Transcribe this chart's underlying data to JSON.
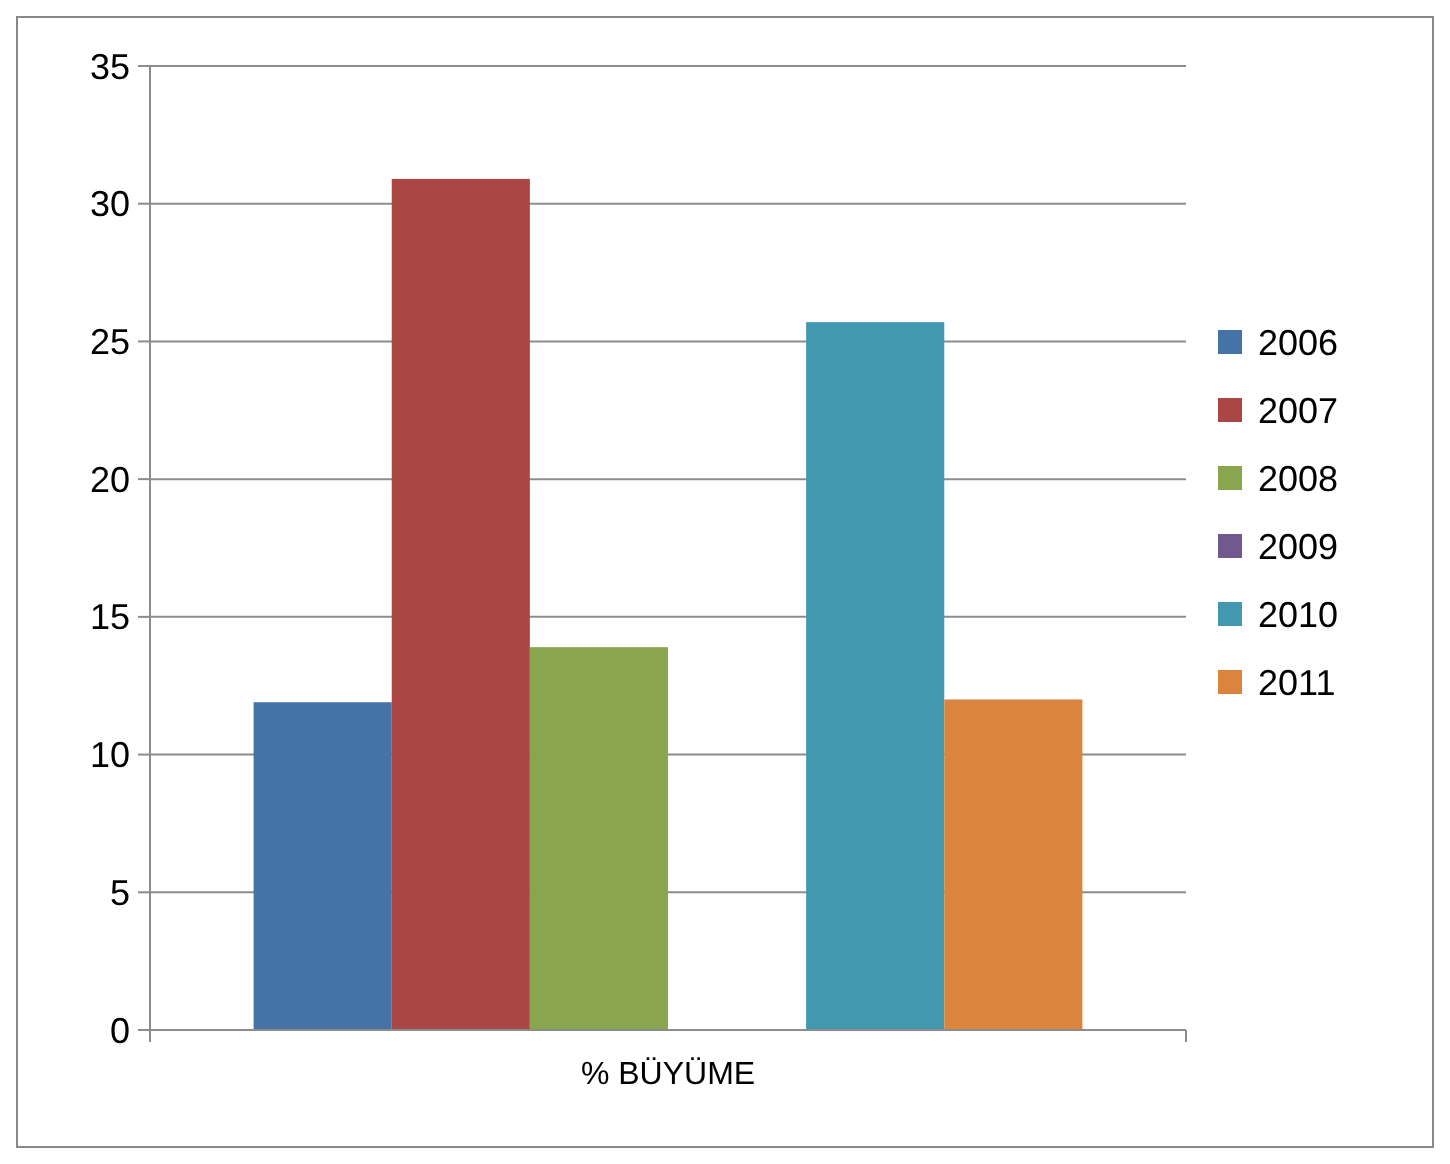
{
  "chart_data": {
    "type": "bar",
    "categories": [
      "% BÜYÜME"
    ],
    "series": [
      {
        "name": "2006",
        "color": "#4572a7",
        "values": [
          11.9
        ]
      },
      {
        "name": "2007",
        "color": "#aa4643",
        "values": [
          30.9
        ]
      },
      {
        "name": "2008",
        "color": "#89a54e",
        "values": [
          13.9
        ]
      },
      {
        "name": "2009",
        "color": "#71588f",
        "values": [
          0
        ]
      },
      {
        "name": "2010",
        "color": "#4198af",
        "values": [
          25.7
        ]
      },
      {
        "name": "2011",
        "color": "#db843d",
        "values": [
          12.0
        ]
      }
    ],
    "ylim": [
      0,
      35
    ],
    "yticks": [
      0,
      5,
      10,
      15,
      20,
      25,
      30,
      35
    ],
    "grid": "y",
    "legend": "right"
  }
}
